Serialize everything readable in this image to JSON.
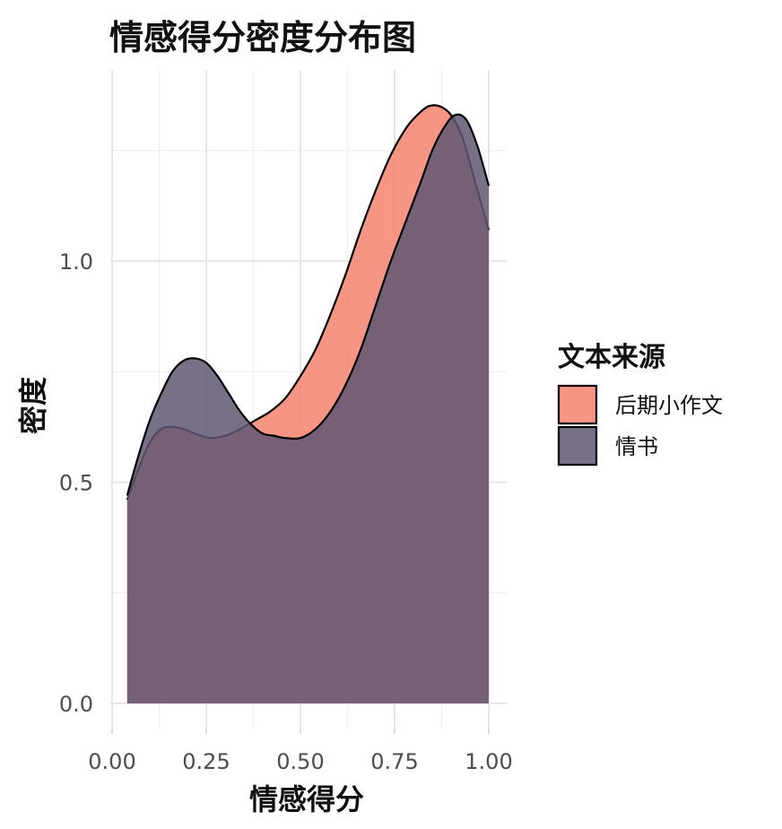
{
  "chart_data": {
    "type": "area",
    "subtype": "density",
    "title": "情感得分密度分布图",
    "xlabel": "情感得分",
    "ylabel": "密度",
    "xlim": [
      0.0,
      1.0
    ],
    "ylim": [
      0.0,
      1.35
    ],
    "x_ticks": [
      "0.00",
      "0.25",
      "0.50",
      "0.75",
      "1.00"
    ],
    "y_ticks": [
      "0.0",
      "0.5",
      "1.0"
    ],
    "grid": true,
    "legend": {
      "title": "文本来源",
      "position": "right"
    },
    "series": [
      {
        "name": "后期小作文",
        "color": "#F4826F",
        "x": [
          0.04,
          0.07,
          0.1,
          0.13,
          0.16,
          0.19,
          0.22,
          0.26,
          0.3,
          0.34,
          0.38,
          0.42,
          0.46,
          0.5,
          0.54,
          0.58,
          0.62,
          0.66,
          0.7,
          0.74,
          0.78,
          0.81,
          0.84,
          0.87,
          0.9,
          0.93,
          0.96,
          0.98,
          1.0
        ],
        "y": [
          0.46,
          0.53,
          0.59,
          0.62,
          0.625,
          0.62,
          0.61,
          0.6,
          0.605,
          0.62,
          0.64,
          0.66,
          0.69,
          0.74,
          0.8,
          0.88,
          0.97,
          1.07,
          1.16,
          1.24,
          1.3,
          1.33,
          1.35,
          1.35,
          1.33,
          1.28,
          1.19,
          1.13,
          1.07
        ]
      },
      {
        "name": "情书",
        "color": "#5F5772",
        "x": [
          0.04,
          0.07,
          0.1,
          0.13,
          0.16,
          0.19,
          0.22,
          0.25,
          0.28,
          0.31,
          0.34,
          0.37,
          0.4,
          0.43,
          0.46,
          0.5,
          0.54,
          0.58,
          0.62,
          0.66,
          0.7,
          0.74,
          0.78,
          0.82,
          0.85,
          0.88,
          0.91,
          0.94,
          0.97,
          1.0
        ],
        "y": [
          0.47,
          0.56,
          0.64,
          0.7,
          0.75,
          0.775,
          0.78,
          0.77,
          0.74,
          0.7,
          0.66,
          0.63,
          0.61,
          0.605,
          0.6,
          0.6,
          0.62,
          0.66,
          0.72,
          0.8,
          0.9,
          1.0,
          1.09,
          1.18,
          1.25,
          1.3,
          1.33,
          1.32,
          1.26,
          1.17
        ]
      }
    ]
  }
}
